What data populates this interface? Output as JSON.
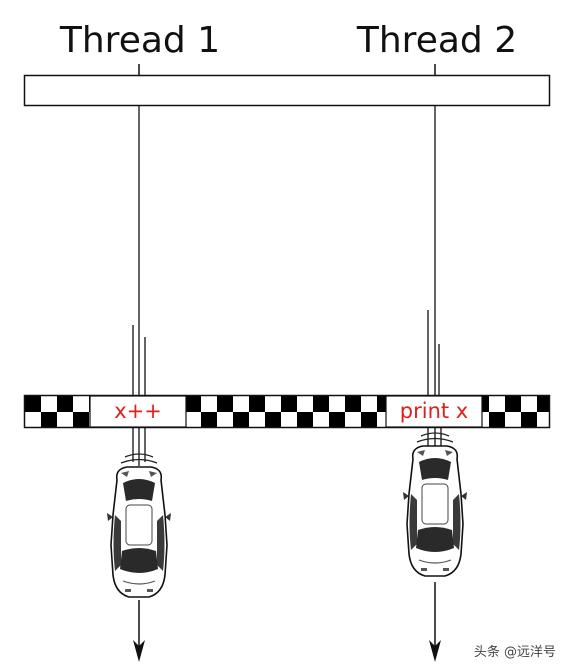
{
  "threads": [
    {
      "title": "Thread 1",
      "operation": "x++"
    },
    {
      "title": "Thread 2",
      "operation": "print x"
    }
  ],
  "watermark": "头条 @远洋号",
  "colors": {
    "line": "#111111",
    "operation_text": "#e0201c",
    "checker_dark": "#000000",
    "checker_light": "#ffffff"
  },
  "icons": [
    "race-car-icon",
    "down-arrow-icon"
  ]
}
